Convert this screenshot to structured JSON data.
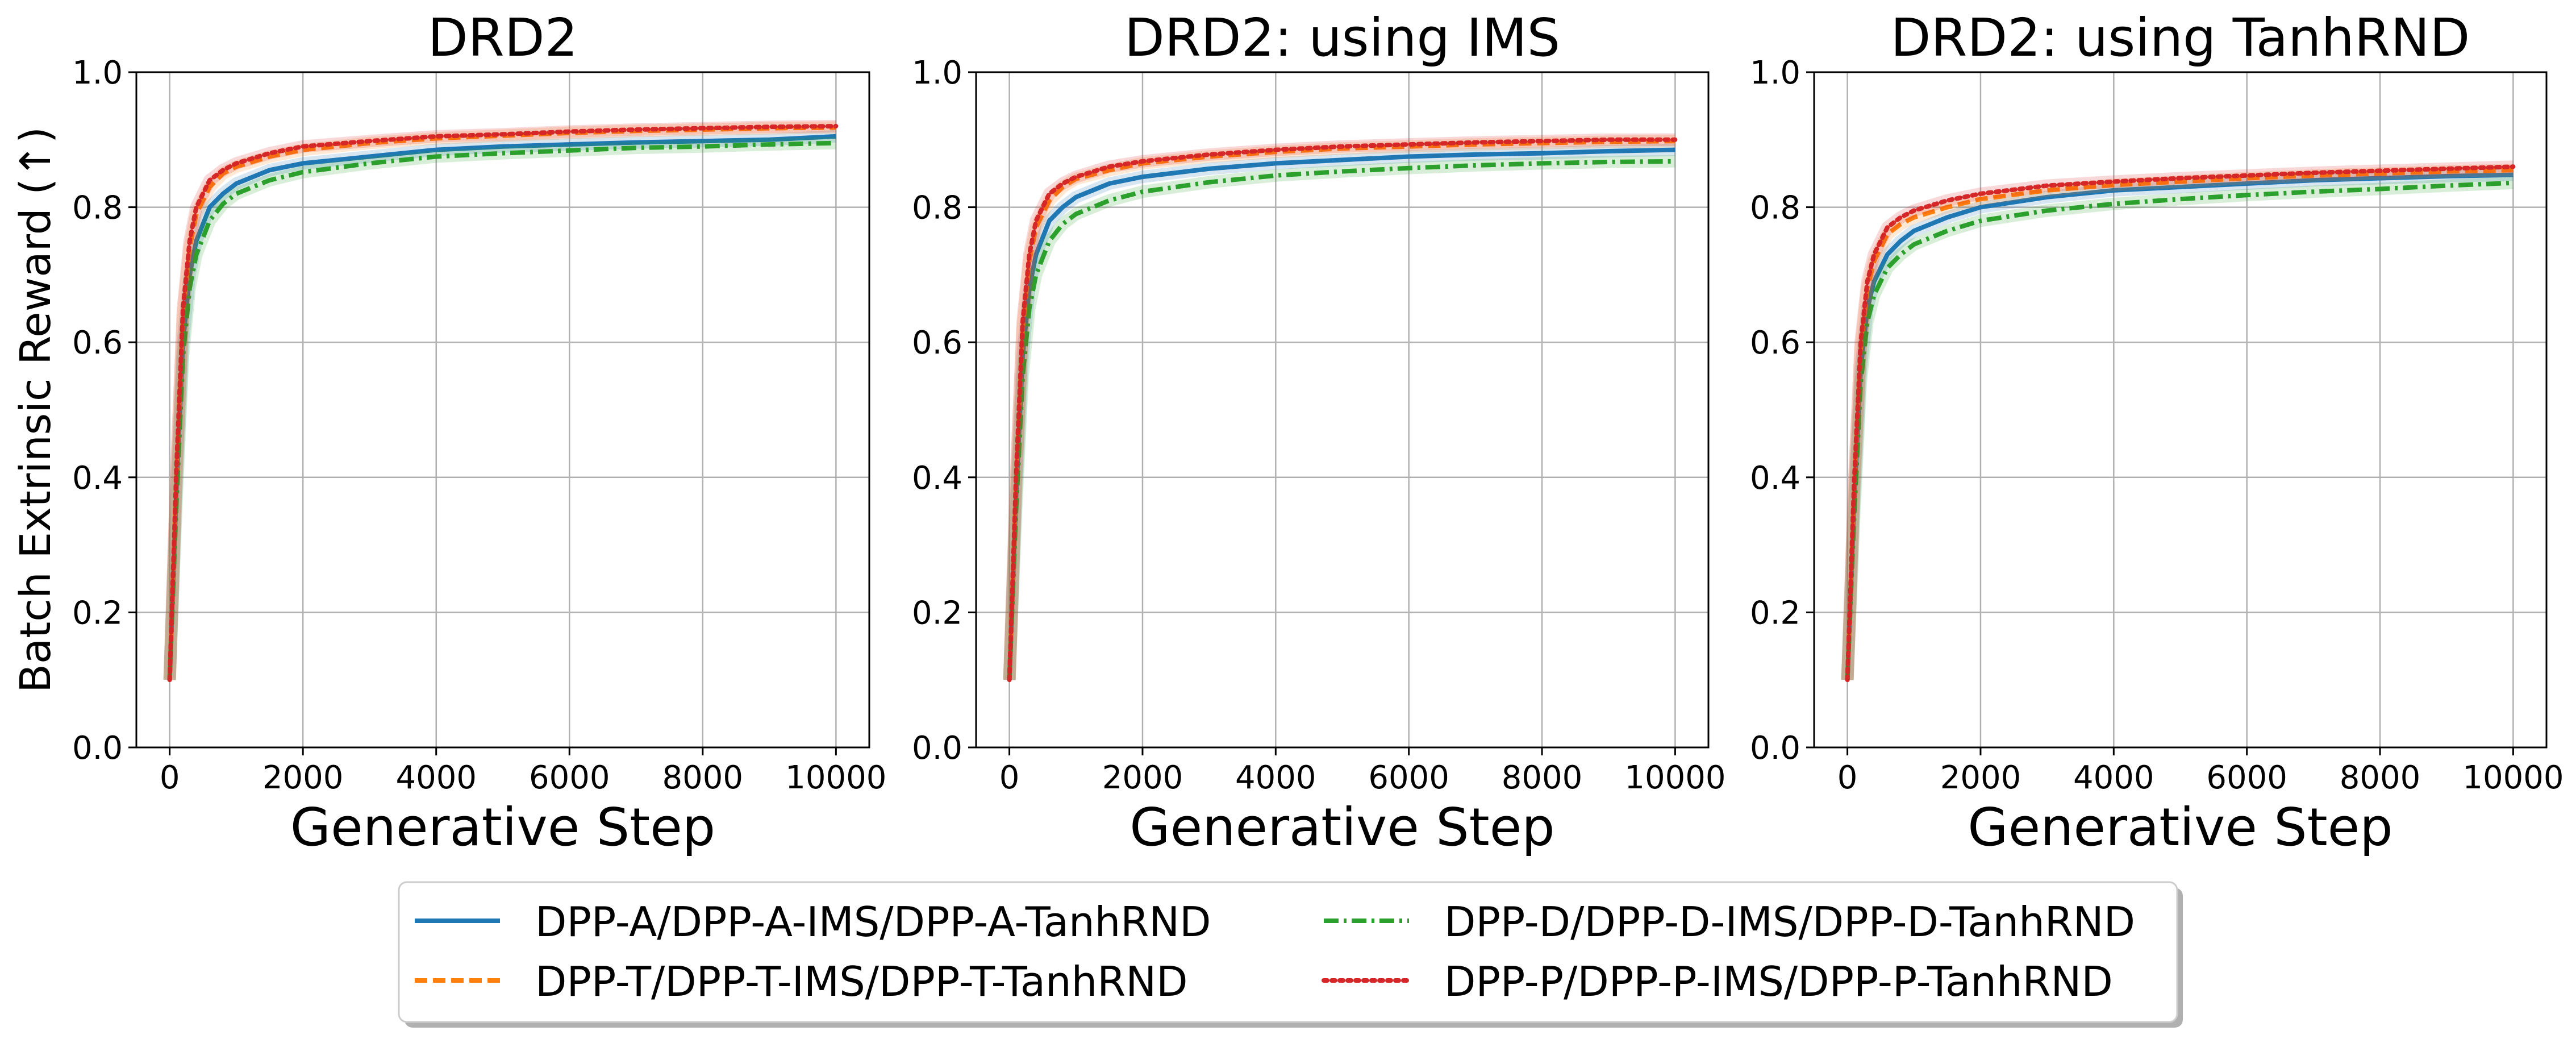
{
  "chart_data": {
    "type": "line",
    "ylabel": "Batch Extrinsic Reward (↑)",
    "xlabel": "Generative Step",
    "xlim": [
      -500,
      10500
    ],
    "ylim": [
      0.0,
      1.0
    ],
    "xticks": [
      0,
      2000,
      4000,
      6000,
      8000,
      10000
    ],
    "yticks": [
      0.0,
      0.2,
      0.4,
      0.6,
      0.8,
      1.0
    ],
    "grid": true,
    "legend_placement": "bottom-center",
    "series_styles": [
      {
        "name": "DPP-A/DPP-A-IMS/DPP-A-TanhRND",
        "color": "#1f77b4",
        "dash": "solid"
      },
      {
        "name": "DPP-T/DPP-T-IMS/DPP-T-TanhRND",
        "color": "#ff7f0e",
        "dash": "dashed"
      },
      {
        "name": "DPP-D/DPP-D-IMS/DPP-D-TanhRND",
        "color": "#2ca02c",
        "dash": "dashdot"
      },
      {
        "name": "DPP-P/DPP-P-IMS/DPP-P-TanhRND",
        "color": "#d62728",
        "dash": "dotted"
      }
    ],
    "x": [
      0,
      100,
      200,
      300,
      400,
      600,
      800,
      1000,
      1500,
      2000,
      3000,
      4000,
      5000,
      6000,
      7000,
      8000,
      9000,
      10000
    ],
    "panels": [
      {
        "title": "DRD2",
        "series": [
          {
            "name": "DPP-A/DPP-A-IMS/DPP-A-TanhRND",
            "values": [
              0.1,
              0.38,
              0.6,
              0.7,
              0.75,
              0.8,
              0.82,
              0.835,
              0.855,
              0.865,
              0.875,
              0.885,
              0.89,
              0.893,
              0.896,
              0.898,
              0.9,
              0.905
            ]
          },
          {
            "name": "DPP-T/DPP-T-IMS/DPP-T-TanhRND",
            "values": [
              0.1,
              0.4,
              0.64,
              0.74,
              0.79,
              0.83,
              0.85,
              0.86,
              0.875,
              0.885,
              0.895,
              0.902,
              0.906,
              0.91,
              0.913,
              0.915,
              0.917,
              0.918
            ]
          },
          {
            "name": "DPP-D/DPP-D-IMS/DPP-D-TanhRND",
            "values": [
              0.1,
              0.36,
              0.58,
              0.68,
              0.73,
              0.78,
              0.805,
              0.82,
              0.84,
              0.852,
              0.865,
              0.875,
              0.88,
              0.884,
              0.888,
              0.89,
              0.893,
              0.895
            ]
          },
          {
            "name": "DPP-P/DPP-P-IMS/DPP-P-TanhRND",
            "values": [
              0.1,
              0.41,
              0.65,
              0.75,
              0.8,
              0.84,
              0.855,
              0.865,
              0.88,
              0.89,
              0.898,
              0.905,
              0.908,
              0.912,
              0.915,
              0.917,
              0.919,
              0.92
            ]
          }
        ]
      },
      {
        "title": "DRD2: using IMS",
        "series": [
          {
            "name": "DPP-A/DPP-A-IMS/DPP-A-TanhRND",
            "values": [
              0.1,
              0.37,
              0.58,
              0.68,
              0.73,
              0.78,
              0.8,
              0.815,
              0.835,
              0.845,
              0.857,
              0.865,
              0.87,
              0.875,
              0.878,
              0.88,
              0.883,
              0.885
            ]
          },
          {
            "name": "DPP-T/DPP-T-IMS/DPP-T-TanhRND",
            "values": [
              0.1,
              0.39,
              0.62,
              0.72,
              0.77,
              0.81,
              0.83,
              0.842,
              0.855,
              0.865,
              0.875,
              0.882,
              0.887,
              0.89,
              0.893,
              0.895,
              0.897,
              0.898
            ]
          },
          {
            "name": "DPP-D/DPP-D-IMS/DPP-D-TanhRND",
            "values": [
              0.1,
              0.35,
              0.55,
              0.65,
              0.7,
              0.75,
              0.775,
              0.79,
              0.81,
              0.823,
              0.837,
              0.847,
              0.853,
              0.858,
              0.862,
              0.865,
              0.867,
              0.868
            ]
          },
          {
            "name": "DPP-P/DPP-P-IMS/DPP-P-TanhRND",
            "values": [
              0.1,
              0.4,
              0.63,
              0.73,
              0.78,
              0.82,
              0.835,
              0.845,
              0.86,
              0.868,
              0.878,
              0.885,
              0.89,
              0.893,
              0.896,
              0.898,
              0.9,
              0.9
            ]
          }
        ]
      },
      {
        "title": "DRD2: using TanhRND",
        "series": [
          {
            "name": "DPP-A/DPP-A-IMS/DPP-A-TanhRND",
            "values": [
              0.1,
              0.36,
              0.56,
              0.65,
              0.69,
              0.73,
              0.75,
              0.765,
              0.785,
              0.8,
              0.815,
              0.825,
              0.83,
              0.835,
              0.84,
              0.843,
              0.846,
              0.848
            ]
          },
          {
            "name": "DPP-T/DPP-T-IMS/DPP-T-TanhRND",
            "values": [
              0.1,
              0.38,
              0.59,
              0.68,
              0.72,
              0.76,
              0.775,
              0.785,
              0.8,
              0.812,
              0.825,
              0.833,
              0.838,
              0.843,
              0.847,
              0.85,
              0.853,
              0.855
            ]
          },
          {
            "name": "DPP-D/DPP-D-IMS/DPP-D-TanhRND",
            "values": [
              0.1,
              0.34,
              0.54,
              0.63,
              0.67,
              0.71,
              0.73,
              0.745,
              0.765,
              0.78,
              0.795,
              0.805,
              0.812,
              0.818,
              0.823,
              0.827,
              0.832,
              0.836
            ]
          },
          {
            "name": "DPP-P/DPP-P-IMS/DPP-P-TanhRND",
            "values": [
              0.1,
              0.39,
              0.6,
              0.69,
              0.73,
              0.77,
              0.785,
              0.795,
              0.81,
              0.82,
              0.832,
              0.838,
              0.843,
              0.847,
              0.851,
              0.854,
              0.857,
              0.86
            ]
          }
        ]
      }
    ]
  }
}
